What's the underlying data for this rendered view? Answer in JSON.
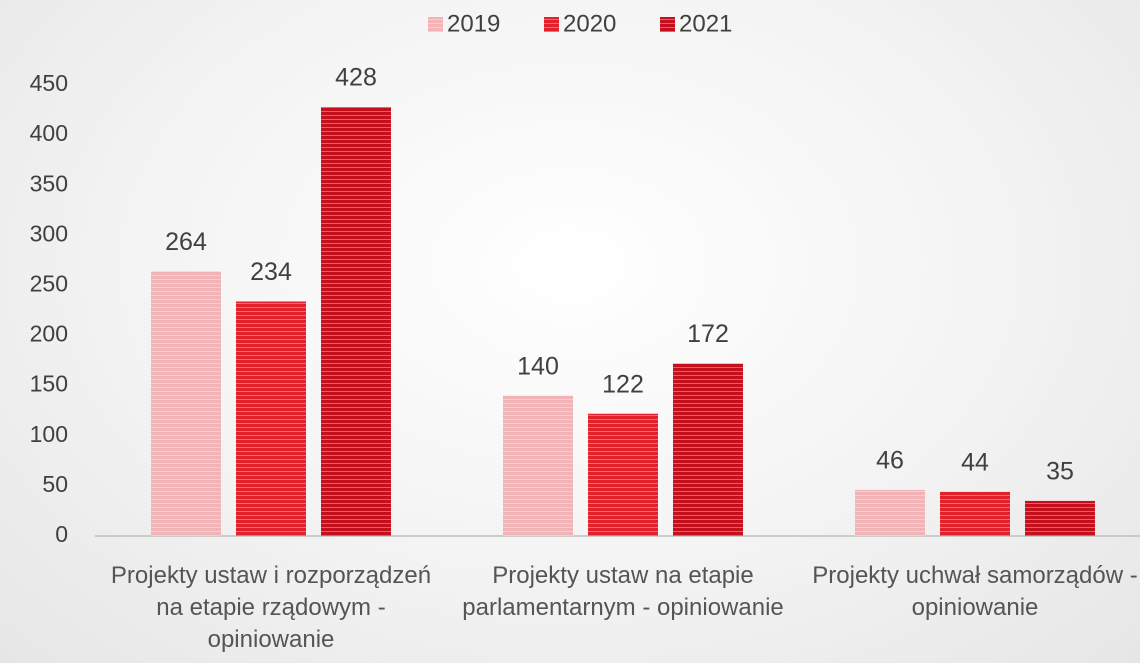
{
  "chart_data": {
    "type": "bar",
    "categories": [
      "Projekty ustaw  i rozporządzeń na etapie rządowym - opiniowanie",
      "Projekty ustaw na etapie parlamentarnym - opiniowanie",
      "Projekty uchwał samorządów - opiniowanie"
    ],
    "series": [
      {
        "name": "2019",
        "color": "#f2b3b7",
        "values": [
          264,
          140,
          46
        ]
      },
      {
        "name": "2020",
        "color": "#e3212b",
        "values": [
          234,
          122,
          44
        ]
      },
      {
        "name": "2021",
        "color": "#c4101c",
        "values": [
          428,
          172,
          35
        ]
      }
    ],
    "ylim": [
      0,
      450
    ],
    "yticks": [
      0,
      50,
      100,
      150,
      200,
      250,
      300,
      350,
      400,
      450
    ],
    "grid": false,
    "legend": "top"
  }
}
